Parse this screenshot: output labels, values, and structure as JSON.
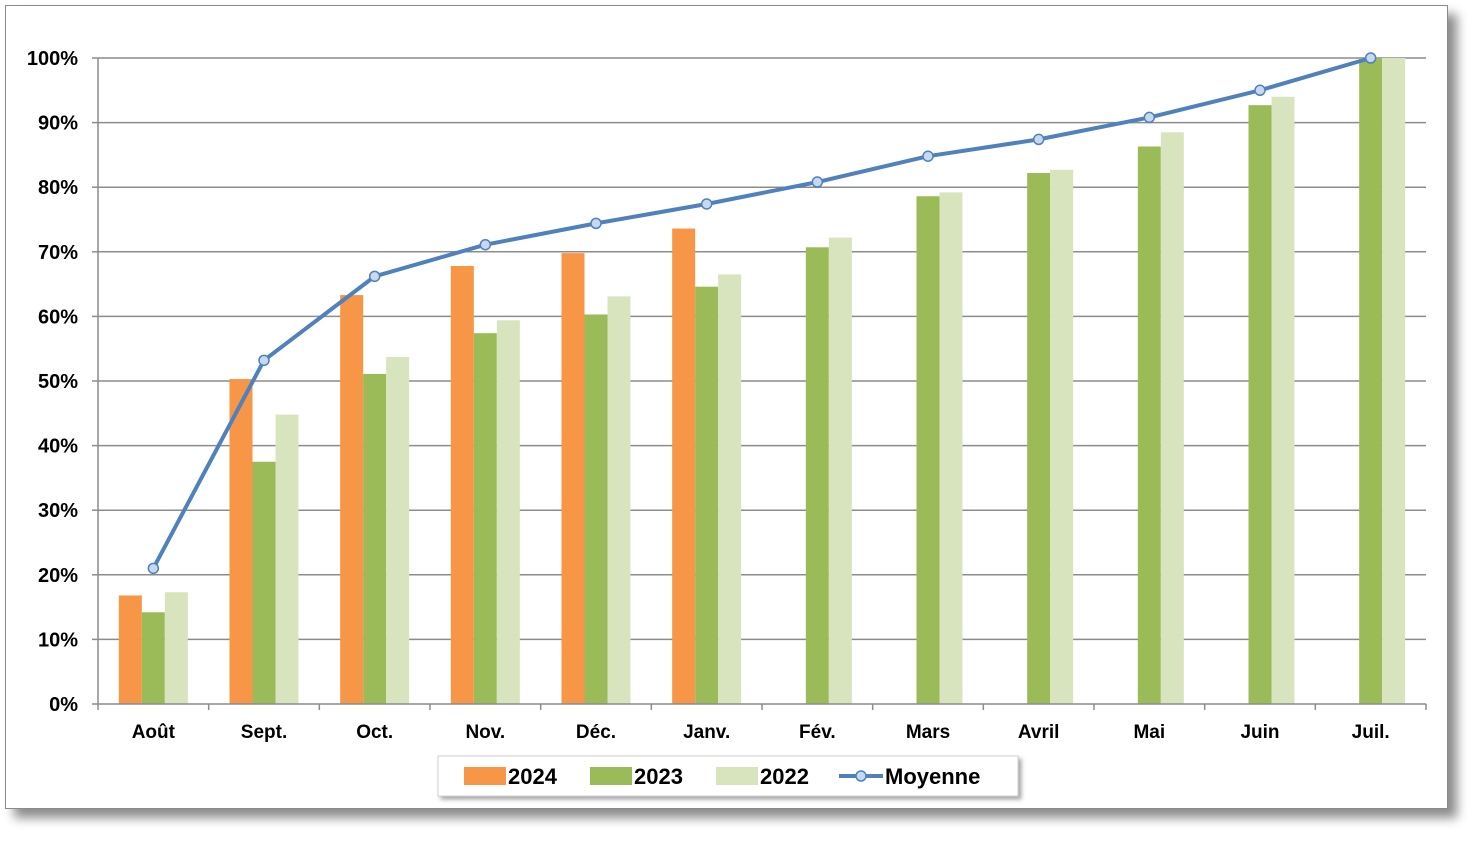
{
  "chart_data": {
    "type": "bar",
    "categories": [
      "Août",
      "Sept.",
      "Oct.",
      "Nov.",
      "Déc.",
      "Janv.",
      "Fév.",
      "Mars",
      "Avril",
      "Mai",
      "Juin",
      "Juil."
    ],
    "series": [
      {
        "name": "2024",
        "kind": "bar",
        "color": "#f79646",
        "values": [
          16.8,
          50.3,
          63.3,
          67.8,
          69.8,
          73.6,
          null,
          null,
          null,
          null,
          null,
          null
        ]
      },
      {
        "name": "2023",
        "kind": "bar",
        "color": "#9bbb59",
        "values": [
          14.2,
          37.5,
          51.1,
          57.4,
          60.3,
          64.6,
          70.7,
          78.6,
          82.2,
          86.3,
          92.7,
          100
        ]
      },
      {
        "name": "2022",
        "kind": "bar",
        "color": "#d7e4bd",
        "values": [
          17.3,
          44.8,
          53.7,
          59.4,
          63.1,
          66.5,
          72.2,
          79.2,
          82.7,
          88.5,
          94.0,
          100
        ]
      },
      {
        "name": "Moyenne",
        "kind": "line",
        "color": "#4f81bd",
        "values": [
          21.0,
          53.2,
          66.2,
          71.1,
          74.4,
          77.4,
          80.8,
          84.8,
          87.4,
          90.8,
          95.0,
          100
        ]
      }
    ],
    "y_ticks": [
      "0%",
      "10%",
      "20%",
      "30%",
      "40%",
      "50%",
      "60%",
      "70%",
      "80%",
      "90%",
      "100%"
    ],
    "ylim": [
      0,
      100
    ],
    "grid": true,
    "legend_placement": "bottom-center"
  }
}
